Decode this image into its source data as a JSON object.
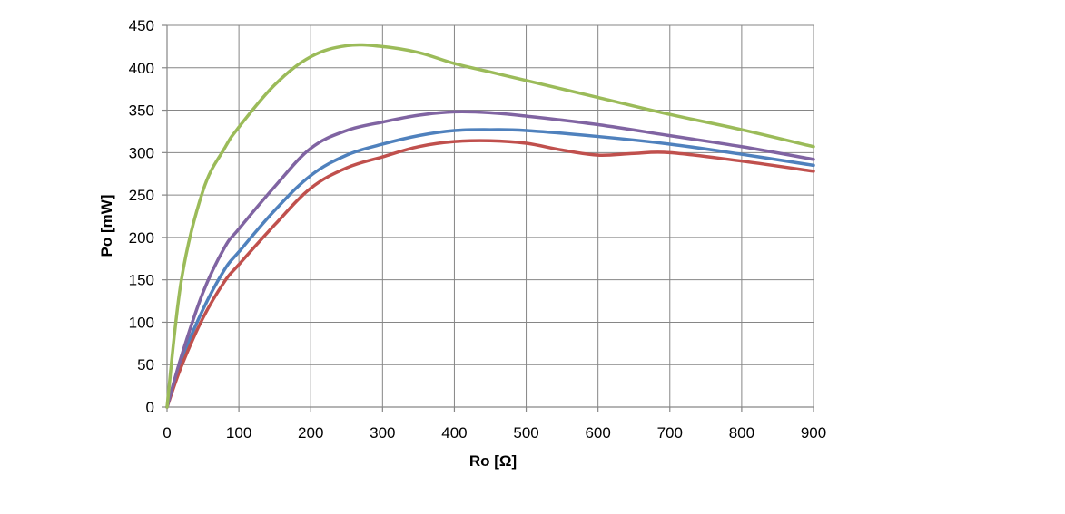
{
  "chart_data": {
    "type": "line",
    "title": "",
    "xlabel": "Ro [Ω]",
    "ylabel": "Po [mW]",
    "xlim": [
      0,
      900
    ],
    "ylim": [
      0,
      450
    ],
    "xticks": [
      0,
      100,
      200,
      300,
      400,
      500,
      600,
      700,
      800,
      900
    ],
    "yticks": [
      0,
      50,
      100,
      150,
      200,
      250,
      300,
      350,
      400,
      450
    ],
    "grid": true,
    "legend": "none",
    "series": [
      {
        "color": "#4f81bd",
        "x": [
          0,
          20,
          50,
          80,
          100,
          150,
          200,
          250,
          300,
          350,
          400,
          450,
          500,
          600,
          700,
          800,
          900
        ],
        "values": [
          0,
          55,
          115,
          162,
          183,
          232,
          273,
          297,
          310,
          320,
          326,
          327,
          326,
          319,
          310,
          298,
          285
        ]
      },
      {
        "color": "#c0504d",
        "x": [
          0,
          20,
          50,
          80,
          100,
          150,
          200,
          250,
          300,
          350,
          400,
          450,
          500,
          550,
          600,
          650,
          700,
          800,
          900
        ],
        "values": [
          0,
          48,
          105,
          148,
          168,
          215,
          258,
          282,
          295,
          307,
          313,
          314,
          311,
          303,
          297,
          299,
          300,
          290,
          278
        ]
      },
      {
        "color": "#8064a2",
        "x": [
          0,
          20,
          50,
          80,
          100,
          150,
          200,
          250,
          300,
          350,
          400,
          450,
          500,
          600,
          700,
          800,
          900
        ],
        "values": [
          0,
          60,
          135,
          188,
          210,
          260,
          305,
          326,
          336,
          344,
          348,
          347,
          343,
          333,
          320,
          307,
          292
        ]
      },
      {
        "color": "#9bbb59",
        "x": [
          0,
          20,
          50,
          80,
          100,
          150,
          200,
          250,
          300,
          350,
          400,
          450,
          500,
          600,
          700,
          800,
          900
        ],
        "values": [
          0,
          150,
          255,
          305,
          330,
          380,
          413,
          426,
          425,
          418,
          405,
          395,
          385,
          365,
          345,
          327,
          307
        ]
      }
    ]
  }
}
